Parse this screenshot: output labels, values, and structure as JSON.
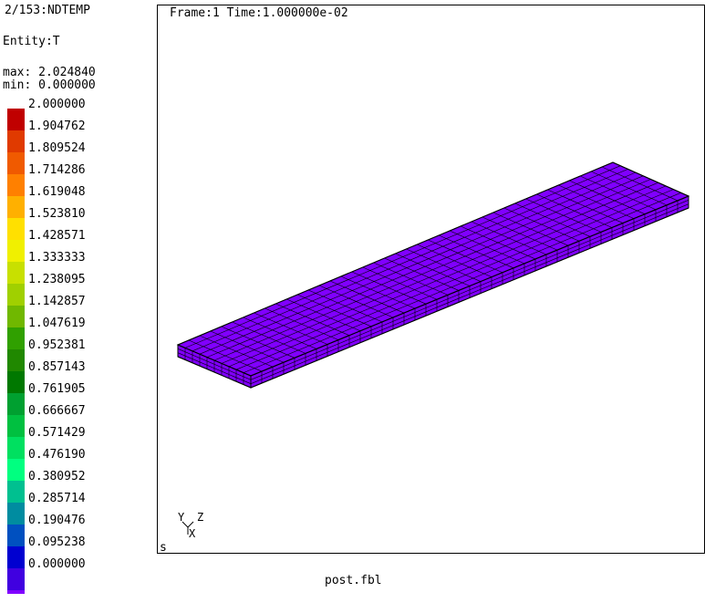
{
  "header": {
    "result_id": "2/153:NDTEMP",
    "entity": "Entity:T",
    "max": "max: 2.024840",
    "min": "min: 0.000000"
  },
  "legend": {
    "entries": [
      {
        "label": "2.000000",
        "color": "#c00000"
      },
      {
        "label": "1.904762",
        "color": "#e03a00"
      },
      {
        "label": "1.809524",
        "color": "#f05a00"
      },
      {
        "label": "1.714286",
        "color": "#ff8000"
      },
      {
        "label": "1.619048",
        "color": "#ffb000"
      },
      {
        "label": "1.523810",
        "color": "#ffe000"
      },
      {
        "label": "1.428571",
        "color": "#f0f000"
      },
      {
        "label": "1.333333",
        "color": "#c8e000"
      },
      {
        "label": "1.238095",
        "color": "#a0d000"
      },
      {
        "label": "1.142857",
        "color": "#70b800"
      },
      {
        "label": "1.047619",
        "color": "#30a000"
      },
      {
        "label": "0.952381",
        "color": "#208800"
      },
      {
        "label": "0.857143",
        "color": "#007800"
      },
      {
        "label": "0.761905",
        "color": "#00a030"
      },
      {
        "label": "0.666667",
        "color": "#00c040"
      },
      {
        "label": "0.571429",
        "color": "#00e060"
      },
      {
        "label": "0.476190",
        "color": "#00ff80"
      },
      {
        "label": "0.380952",
        "color": "#00c090"
      },
      {
        "label": "0.285714",
        "color": "#008ca0"
      },
      {
        "label": "0.190476",
        "color": "#0050c0"
      },
      {
        "label": "0.095238",
        "color": "#0000d0"
      },
      {
        "label": "0.000000",
        "color": "#4000e0"
      },
      {
        "label": "",
        "color": "#8000ff"
      }
    ]
  },
  "viewport": {
    "frame_info": "Frame:1 Time:1.000000e-02",
    "corner_label": "s",
    "model_color": "#8000ff",
    "mesh_color": "#000000",
    "triad": {
      "y": "Y",
      "z": "Z",
      "x": "X"
    }
  },
  "footer": {
    "filename": "post.fbl"
  }
}
